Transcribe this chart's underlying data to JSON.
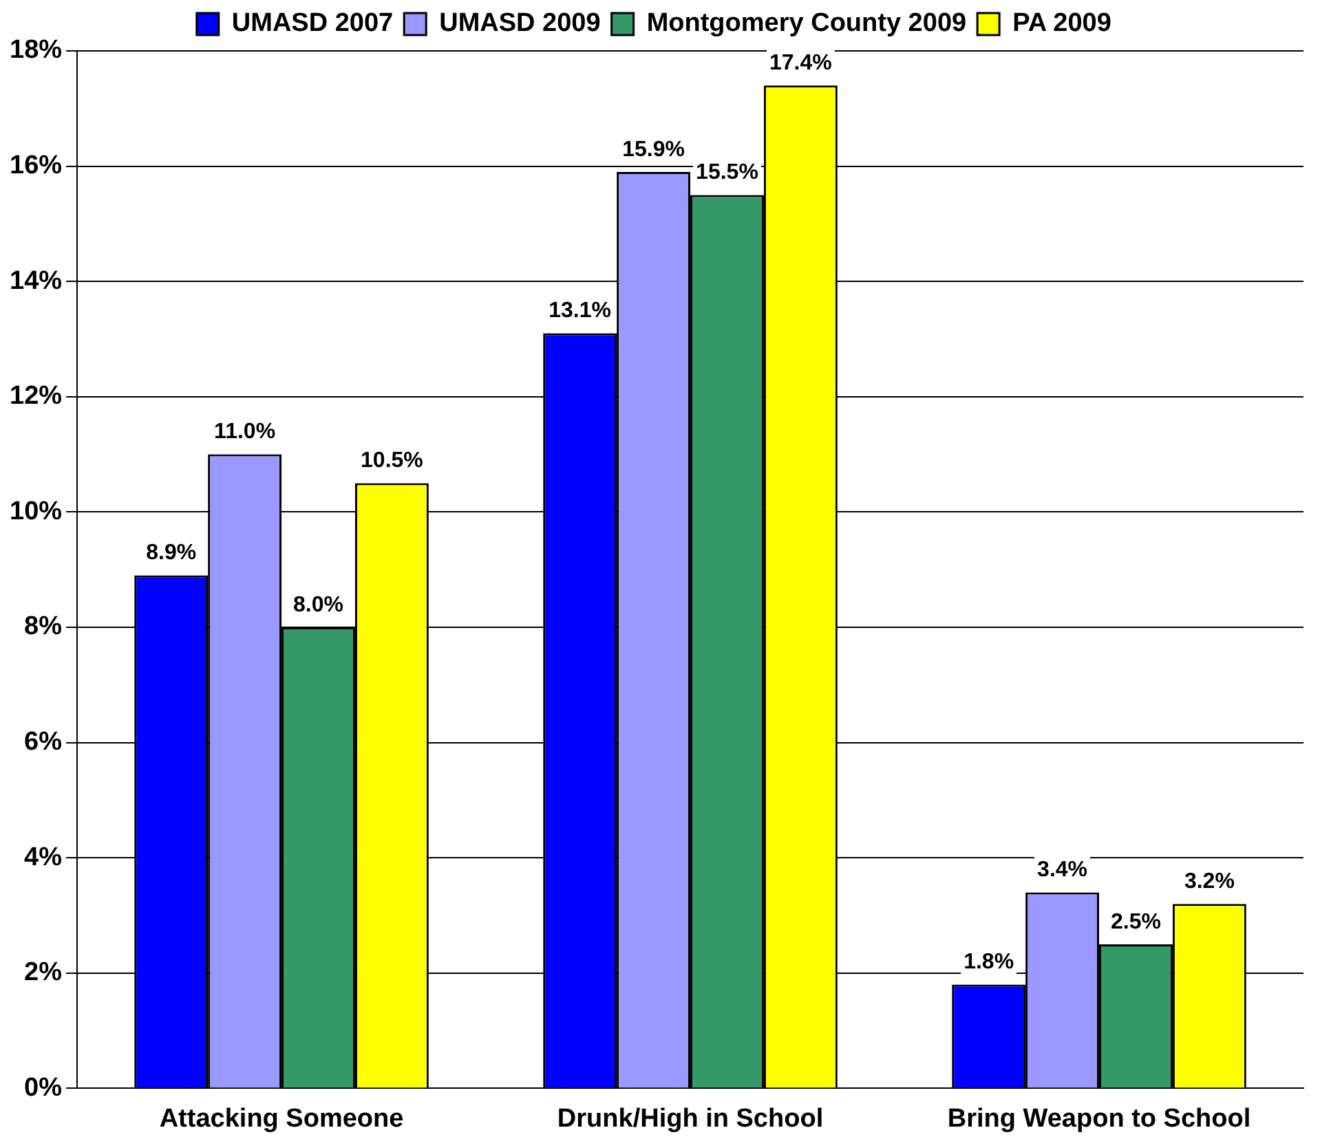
{
  "chart_data": {
    "type": "bar",
    "categories": [
      "Attacking Someone",
      "Drunk/High in School",
      "Bring Weapon to School"
    ],
    "series": [
      {
        "name": "UMASD 2007",
        "color": "#0000ff",
        "values": [
          8.9,
          13.1,
          1.8
        ],
        "value_labels": [
          "8.9%",
          "13.1%",
          "1.8%"
        ]
      },
      {
        "name": "UMASD 2009",
        "color": "#9999ff",
        "values": [
          11.0,
          15.9,
          3.4
        ],
        "value_labels": [
          "11.0%",
          "15.9%",
          "3.4%"
        ]
      },
      {
        "name": "Montgomery County 2009",
        "color": "#339966",
        "values": [
          8.0,
          15.5,
          2.5
        ],
        "value_labels": [
          "8.0%",
          "15.5%",
          "2.5%"
        ]
      },
      {
        "name": "PA 2009",
        "color": "#ffff00",
        "values": [
          10.5,
          17.4,
          3.2
        ],
        "value_labels": [
          "10.5%",
          "17.4%",
          "3.2%"
        ]
      }
    ],
    "ylim": [
      0,
      18
    ],
    "yticks": [
      {
        "value": 0,
        "label": "0%"
      },
      {
        "value": 2,
        "label": "2%"
      },
      {
        "value": 4,
        "label": "4%"
      },
      {
        "value": 6,
        "label": "6%"
      },
      {
        "value": 8,
        "label": "8%"
      },
      {
        "value": 10,
        "label": "10%"
      },
      {
        "value": 12,
        "label": "12%"
      },
      {
        "value": 14,
        "label": "14%"
      },
      {
        "value": 16,
        "label": "16%"
      },
      {
        "value": 18,
        "label": "18%"
      }
    ],
    "grid": "y",
    "legend": "top"
  }
}
